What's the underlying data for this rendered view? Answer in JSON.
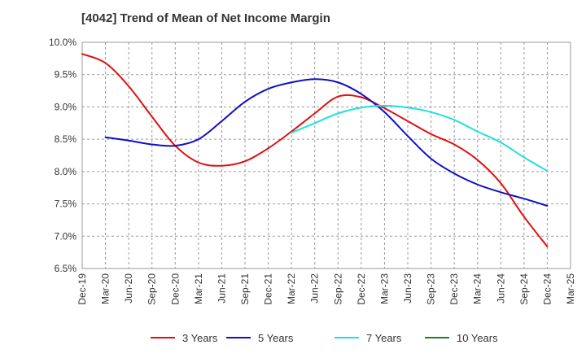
{
  "chart_data": {
    "type": "line",
    "title": "[4042]  Trend of Mean of Net Income Margin",
    "xlabel": "",
    "ylabel": "",
    "x": [
      "Dec-19",
      "Mar-20",
      "Jun-20",
      "Sep-20",
      "Dec-20",
      "Mar-21",
      "Jun-21",
      "Sep-21",
      "Dec-21",
      "Mar-22",
      "Jun-22",
      "Sep-22",
      "Dec-22",
      "Mar-23",
      "Jun-23",
      "Sep-23",
      "Dec-23",
      "Mar-24",
      "Jun-24",
      "Sep-24",
      "Dec-24",
      "Mar-25"
    ],
    "ylim": [
      6.5,
      10.0
    ],
    "yticks": [
      "6.5%",
      "7.0%",
      "7.5%",
      "8.0%",
      "8.5%",
      "9.0%",
      "9.5%",
      "10.0%"
    ],
    "grid": true,
    "legend_position": "bottom",
    "series": [
      {
        "name": "3 Years",
        "color": "#e01010",
        "values": [
          9.82,
          9.68,
          9.32,
          8.85,
          8.4,
          8.14,
          8.09,
          8.16,
          8.36,
          8.62,
          8.9,
          9.16,
          9.15,
          8.98,
          8.78,
          8.58,
          8.42,
          8.18,
          7.82,
          7.3,
          6.84,
          null
        ]
      },
      {
        "name": "5 Years",
        "color": "#1010c0",
        "values": [
          null,
          8.53,
          8.48,
          8.42,
          8.4,
          8.5,
          8.78,
          9.08,
          9.28,
          9.38,
          9.43,
          9.38,
          9.2,
          8.92,
          8.55,
          8.2,
          7.97,
          7.8,
          7.68,
          7.58,
          7.47,
          null
        ]
      },
      {
        "name": "7 Years",
        "color": "#20e0e0",
        "values": [
          null,
          null,
          null,
          null,
          null,
          null,
          null,
          null,
          null,
          8.6,
          8.75,
          8.9,
          8.99,
          9.02,
          8.99,
          8.92,
          8.8,
          8.62,
          8.45,
          8.22,
          8.01,
          null
        ]
      },
      {
        "name": "10 Years",
        "color": "#208020",
        "values": [
          null,
          null,
          null,
          null,
          null,
          null,
          null,
          null,
          null,
          null,
          null,
          null,
          null,
          null,
          null,
          null,
          null,
          null,
          null,
          null,
          null,
          null
        ]
      }
    ]
  }
}
